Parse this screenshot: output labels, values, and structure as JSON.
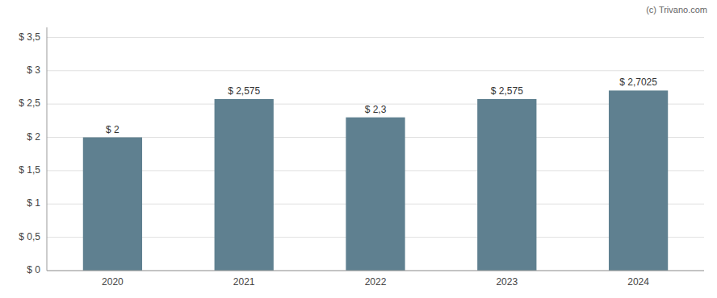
{
  "chart_data": {
    "type": "bar",
    "categories": [
      "2020",
      "2021",
      "2022",
      "2023",
      "2024"
    ],
    "values": [
      2.0,
      2.575,
      2.3,
      2.575,
      2.7025
    ],
    "value_labels": [
      "$ 2",
      "$ 2,575",
      "$ 2,3",
      "$ 2,575",
      "$ 2,7025"
    ],
    "data_labels": true,
    "color": "#5f8090",
    "ylim": [
      0,
      3.65
    ],
    "yticks": [
      {
        "value": 0,
        "label": "$ 0"
      },
      {
        "value": 0.5,
        "label": "$ 0,5"
      },
      {
        "value": 1.0,
        "label": "$ 1"
      },
      {
        "value": 1.5,
        "label": "$ 1,5"
      },
      {
        "value": 2.0,
        "label": "$ 2"
      },
      {
        "value": 2.5,
        "label": "$ 2,5"
      },
      {
        "value": 3.0,
        "label": "$ 3"
      },
      {
        "value": 3.5,
        "label": "$ 3,5"
      }
    ],
    "grid": true,
    "annotations": [
      "(c) ",
      "Trivano.com"
    ]
  }
}
